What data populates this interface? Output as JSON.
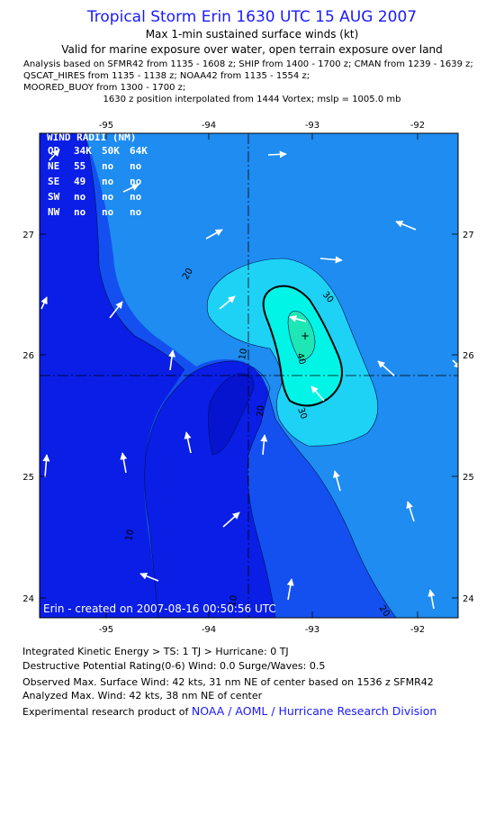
{
  "header": {
    "title": "Tropical Storm Erin 1630 UTC 15 AUG 2007",
    "subtitle1": "Max 1-min sustained surface winds (kt)",
    "subtitle2": "Valid for marine exposure over water, open terrain exposure over land",
    "analysis_lines": [
      "Analysis based on  SFMR42 from 1135 - 1608 z;  SHIP from 1400 - 1700 z;  CMAN from 1239 - 1639 z;",
      "QSCAT_HIRES from 1135 - 1138 z;  NOAA42 from 1135 - 1554 z;",
      "MOORED_BUOY from 1300 - 1700 z;"
    ],
    "position_line": "1630 z position interpolated from 1444 Vortex; mslp = 1005.0 mb"
  },
  "map": {
    "lon_ticks": [
      "-95",
      "-94",
      "-93",
      "-92"
    ],
    "lat_ticks": [
      "24",
      "25",
      "26",
      "27"
    ],
    "contour_labels": [
      "10",
      "10",
      "20",
      "20",
      "20",
      "30",
      "30",
      "40"
    ],
    "center_marker": "+",
    "credit": "Erin - created on 2007-08-16 00:50:56 UTC",
    "colors": {
      "band_0_10": "#0a1ee6",
      "band_10_20": "#1450f0",
      "band_20_30": "#1e8cf0",
      "band_30_40": "#1ed2f5",
      "band_40_up": "#00f5e6",
      "core": "#1ee6b4",
      "arrows": "#ffffff",
      "text_overlay": "#ffffff"
    }
  },
  "wind_radii": {
    "title": "WIND RADII (NM)",
    "header": [
      "QD",
      "34K",
      "50K",
      "64K"
    ],
    "rows": [
      [
        "NE",
        "55",
        "no",
        "no"
      ],
      [
        "SE",
        "49",
        "no",
        "no"
      ],
      [
        "SW",
        "no",
        "no",
        "no"
      ],
      [
        "NW",
        "no",
        "no",
        "no"
      ]
    ]
  },
  "footer": {
    "ike": "Integrated Kinetic Energy > TS: 1 TJ    > Hurricane: 0 TJ",
    "dpr": "Destructive Potential Rating(0-6)   Wind: 0.0 Surge/Waves: 0.5",
    "observed": "Observed Max. Surface Wind: 42 kts, 31 nm NE of center based on 1536 z SFMR42",
    "analyzed": "Analyzed Max. Wind: 42 kts, 38 nm NE of center",
    "product_prefix": "Experimental research product of",
    "product_link": "NOAA / AOML / Hurricane Research Division"
  }
}
